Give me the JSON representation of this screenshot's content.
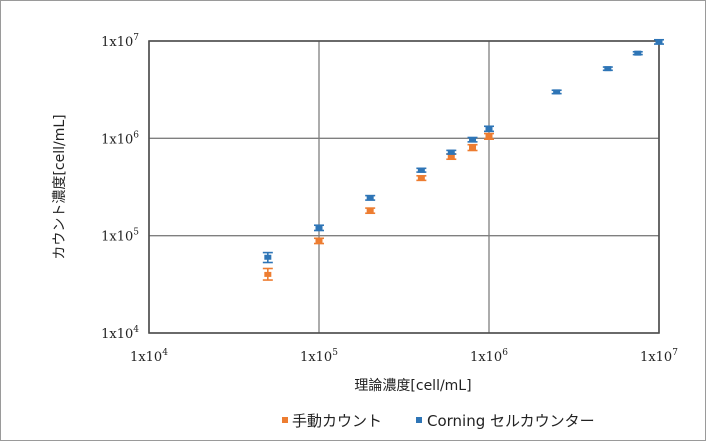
{
  "chart_data": {
    "type": "scatter",
    "xscale": "log",
    "yscale": "log",
    "xlim": [
      10000,
      10000000
    ],
    "ylim": [
      10000,
      10000000
    ],
    "grid": true,
    "legend_position": "bottom",
    "xlabel": "理論濃度[cell/mL]",
    "ylabel": "カウント濃度[cell/mL]",
    "x_ticks": [
      {
        "value": 10000,
        "base": "1x10",
        "exp": "4"
      },
      {
        "value": 100000,
        "base": "1x10",
        "exp": "5"
      },
      {
        "value": 1000000,
        "base": "1x10",
        "exp": "6"
      },
      {
        "value": 10000000,
        "base": "1x10",
        "exp": "7"
      }
    ],
    "y_ticks": [
      {
        "value": 10000,
        "base": "1x10",
        "exp": "4"
      },
      {
        "value": 100000,
        "base": "1x10",
        "exp": "5"
      },
      {
        "value": 1000000,
        "base": "1x10",
        "exp": "6"
      },
      {
        "value": 10000000,
        "base": "1x10",
        "exp": "7"
      }
    ],
    "series": [
      {
        "name": "手動カウント",
        "color": "#ed7d31",
        "points": [
          {
            "x": 50000,
            "y": 40000,
            "err_low": 35000,
            "err_high": 46000
          },
          {
            "x": 100000,
            "y": 88000,
            "err_low": 83000,
            "err_high": 94000
          },
          {
            "x": 200000,
            "y": 180000,
            "err_low": 170000,
            "err_high": 192000
          },
          {
            "x": 400000,
            "y": 390000,
            "err_low": 370000,
            "err_high": 412000
          },
          {
            "x": 600000,
            "y": 650000,
            "err_low": 610000,
            "err_high": 690000
          },
          {
            "x": 800000,
            "y": 800000,
            "err_low": 750000,
            "err_high": 860000
          },
          {
            "x": 1000000,
            "y": 1050000,
            "err_low": 980000,
            "err_high": 1120000
          }
        ]
      },
      {
        "name": "Corning セルカウンター",
        "color": "#2e75b6",
        "points": [
          {
            "x": 50000,
            "y": 60000,
            "err_low": 53000,
            "err_high": 67000
          },
          {
            "x": 100000,
            "y": 120000,
            "err_low": 113000,
            "err_high": 128000
          },
          {
            "x": 200000,
            "y": 245000,
            "err_low": 232000,
            "err_high": 258000
          },
          {
            "x": 400000,
            "y": 470000,
            "err_low": 450000,
            "err_high": 492000
          },
          {
            "x": 600000,
            "y": 720000,
            "err_low": 690000,
            "err_high": 752000
          },
          {
            "x": 800000,
            "y": 970000,
            "err_low": 920000,
            "err_high": 1020000
          },
          {
            "x": 1000000,
            "y": 1250000,
            "err_low": 1180000,
            "err_high": 1330000
          },
          {
            "x": 2500000,
            "y": 3000000,
            "err_low": 2880000,
            "err_high": 3120000
          },
          {
            "x": 5000000,
            "y": 5200000,
            "err_low": 5000000,
            "err_high": 5400000
          },
          {
            "x": 7500000,
            "y": 7500000,
            "err_low": 7250000,
            "err_high": 7750000
          },
          {
            "x": 10000000,
            "y": 9800000,
            "err_low": 9300000,
            "err_high": 10300000
          }
        ]
      }
    ]
  }
}
